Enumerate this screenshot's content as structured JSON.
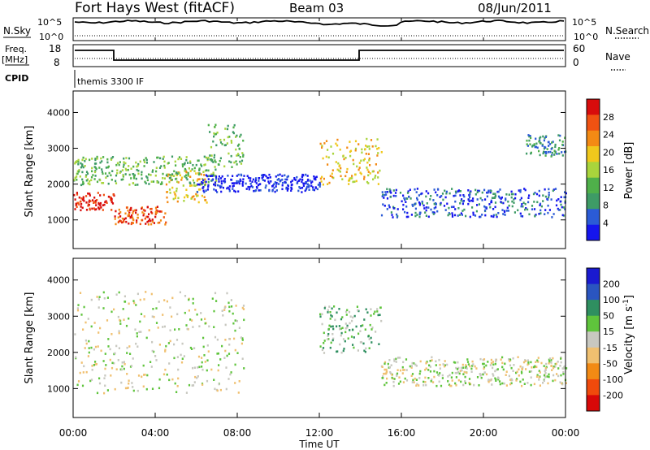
{
  "header": {
    "station": "Fort Hays West (fitACF)",
    "beam": "Beam 03",
    "date": "08/Jun/2011"
  },
  "top_panels": {
    "nsky_label": "N.Sky",
    "nsky_ticks": [
      "10^5",
      "10^0"
    ],
    "nsearch_label": "N.Search",
    "nsearch_ticks": [
      "10^5",
      "10^0"
    ],
    "freq_label": "Freq.",
    "freq_unit": "[MHz]",
    "freq_ticks": [
      "18",
      "8"
    ],
    "nave_label": "Nave",
    "nave_ticks": [
      "60",
      "0"
    ],
    "cpid_label": "CPID",
    "cpid_value": "themis 3300 IF"
  },
  "x_axis": {
    "title": "Time UT",
    "ticks": [
      "00:00",
      "04:00",
      "08:00",
      "12:00",
      "16:00",
      "20:00",
      "00:00"
    ]
  },
  "colors": {
    "power": [
      "#1515ee",
      "#2b5bd6",
      "#3e9b66",
      "#4fb04a",
      "#a9d43c",
      "#f0c81c",
      "#f38a14",
      "#f05212",
      "#d80c0c"
    ],
    "velocity": [
      "#1a1ad0",
      "#2a55c0",
      "#2f8f60",
      "#5fc43c",
      "#c8c8c0",
      "#f0c070",
      "#f28a14",
      "#f04a0c",
      "#d80808"
    ]
  },
  "chart_data": [
    {
      "type": "heatmap",
      "name": "power",
      "xlabel": "Time UT",
      "ylabel": "Slant Range [km]",
      "xlim": [
        0,
        24
      ],
      "ylim": [
        200,
        4600
      ],
      "yticks": [
        "1000",
        "2000",
        "3000",
        "4000"
      ],
      "colorbar_label": "Power [dB]",
      "colorbar_ticks": [
        "4",
        "8",
        "12",
        "16",
        "20",
        "24",
        "28"
      ],
      "scatter_regions": [
        {
          "t": [
            0.0,
            2.0
          ],
          "r": [
            1300,
            1800
          ],
          "level": 8
        },
        {
          "t": [
            2.0,
            4.5
          ],
          "r": [
            900,
            1400
          ],
          "level": 7
        },
        {
          "t": [
            4.5,
            6.5
          ],
          "r": [
            1500,
            2400
          ],
          "level": 5
        },
        {
          "t": [
            6.5,
            8.3
          ],
          "r": [
            2500,
            3700
          ],
          "level": 3
        },
        {
          "t": [
            0.0,
            7.0
          ],
          "r": [
            2000,
            2800
          ],
          "level": 3
        },
        {
          "t": [
            6.0,
            12.0
          ],
          "r": [
            1800,
            2300
          ],
          "level": 0
        },
        {
          "t": [
            12.0,
            15.0
          ],
          "r": [
            2000,
            3300
          ],
          "level": 5
        },
        {
          "t": [
            15.0,
            24.0
          ],
          "r": [
            1100,
            1900
          ],
          "level": 1
        },
        {
          "t": [
            22.0,
            24.0
          ],
          "r": [
            2800,
            3400
          ],
          "level": 2
        }
      ]
    },
    {
      "type": "heatmap",
      "name": "velocity",
      "xlabel": "Time UT",
      "ylabel": "Slant Range [km]",
      "xlim": [
        0,
        24
      ],
      "ylim": [
        200,
        4600
      ],
      "yticks": [
        "1000",
        "2000",
        "3000",
        "4000"
      ],
      "colorbar_label": "Velocity [m s^-1]",
      "colorbar_ticks": [
        "200",
        "100",
        "50",
        "15",
        "-15",
        "-50",
        "-100",
        "-200"
      ],
      "scatter_regions": [
        {
          "t": [
            0.0,
            8.3
          ],
          "r": [
            900,
            3700
          ],
          "level": 4
        },
        {
          "t": [
            12.0,
            15.0
          ],
          "r": [
            2000,
            3300
          ],
          "level": 3
        },
        {
          "t": [
            15.0,
            24.0
          ],
          "r": [
            1100,
            1900
          ],
          "level": 4
        }
      ]
    }
  ]
}
